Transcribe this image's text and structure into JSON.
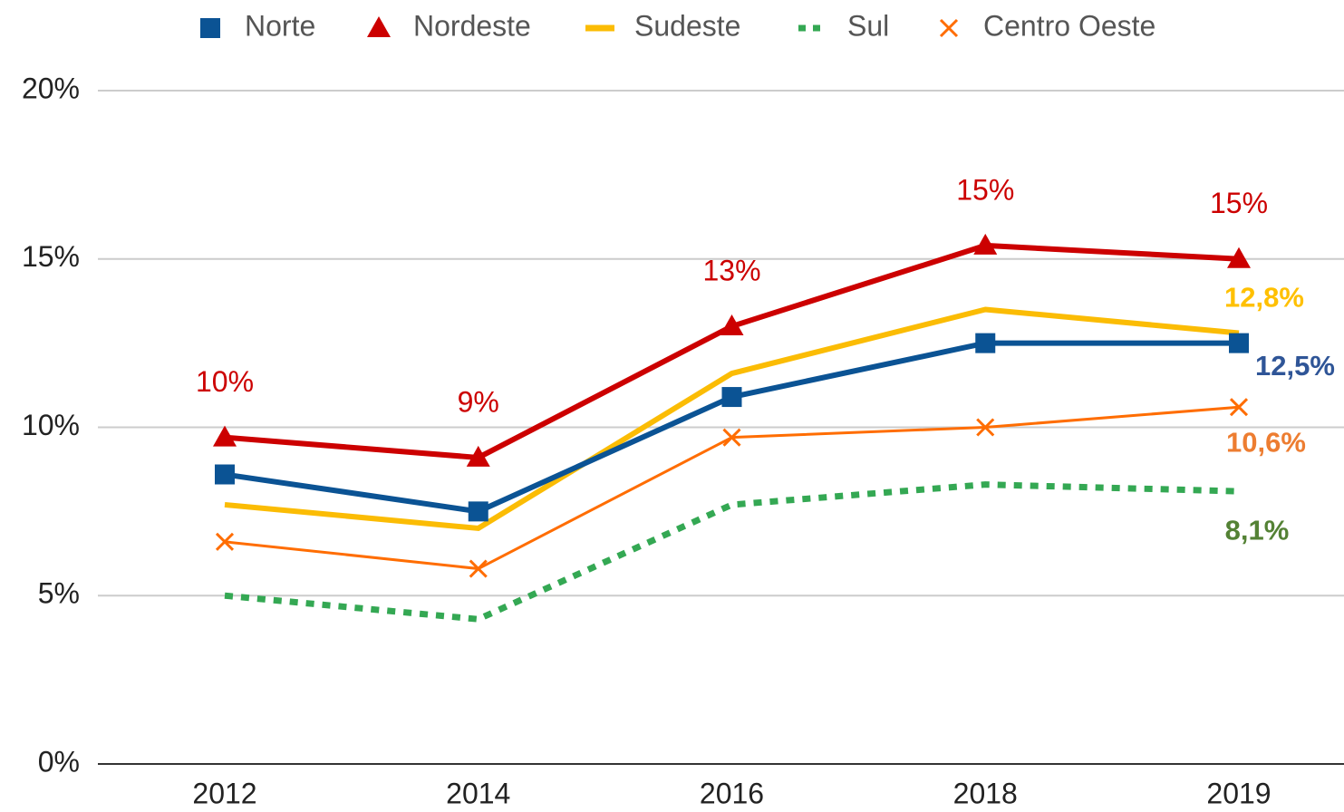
{
  "chart_data": {
    "type": "line",
    "categories": [
      "2012",
      "2014",
      "2016",
      "2018",
      "2019"
    ],
    "ylim": [
      0,
      20
    ],
    "yticks": [
      {
        "value": 0,
        "label": "0%"
      },
      {
        "value": 5,
        "label": "5%"
      },
      {
        "value": 10,
        "label": "10%"
      },
      {
        "value": 15,
        "label": "15%"
      },
      {
        "value": 20,
        "label": "20%"
      }
    ],
    "grid": true,
    "legend": "top",
    "series": [
      {
        "name": "Norte",
        "color": "#0b5394",
        "label_color": "#2f5597",
        "marker": "square",
        "values": [
          8.6,
          7.5,
          10.9,
          12.5,
          12.5
        ],
        "value_labels": [
          null,
          null,
          null,
          null,
          "12,5%"
        ]
      },
      {
        "name": "Nordeste",
        "color": "#cc0000",
        "label_color": "#cc0000",
        "marker": "triangle",
        "values": [
          9.7,
          9.1,
          13.0,
          15.4,
          15.0
        ],
        "value_labels": [
          "10%",
          "9%",
          "13%",
          "15%",
          "15%"
        ]
      },
      {
        "name": "Sudeste",
        "color": "#fbbc04",
        "label_color": "#ffc000",
        "marker": "none",
        "values": [
          7.7,
          7.0,
          11.6,
          13.5,
          12.8
        ],
        "value_labels": [
          null,
          null,
          null,
          null,
          "12,8%"
        ]
      },
      {
        "name": "Sul",
        "color": "#34a853",
        "label_color": "#548235",
        "marker": "none",
        "dashed": true,
        "values": [
          5.0,
          4.3,
          7.7,
          8.3,
          8.1
        ],
        "value_labels": [
          null,
          null,
          null,
          null,
          "8,1%"
        ]
      },
      {
        "name": "Centro Oeste",
        "color": "#ff6d01",
        "label_color": "#ed7d31",
        "marker": "x",
        "values": [
          6.6,
          5.8,
          9.7,
          10.0,
          10.6
        ],
        "value_labels": [
          null,
          null,
          null,
          null,
          "10,6%"
        ]
      }
    ]
  }
}
